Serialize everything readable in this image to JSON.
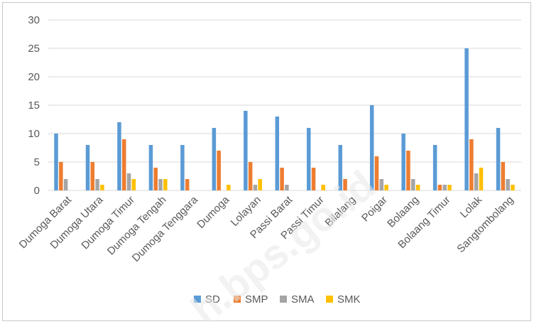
{
  "chart_data": {
    "type": "bar",
    "categories": [
      "Dumoga Barat",
      "Dumoga Utara",
      "Dumoga Timur",
      "Dumoga Tengah",
      "Dumoga Tenggara",
      "Dumoga",
      "Lolayan",
      "Passi Barat",
      "Passi Timur",
      "Bilalang",
      "Poigar",
      "Bolaang",
      "Bolaang Timur",
      "Lolak",
      "Sangtombolang"
    ],
    "series": [
      {
        "name": "SD",
        "color": "#5b9bd5",
        "values": [
          10,
          8,
          12,
          8,
          8,
          11,
          14,
          13,
          11,
          8,
          15,
          10,
          8,
          25,
          11
        ]
      },
      {
        "name": "SMP",
        "color": "#ed7d31",
        "values": [
          5,
          5,
          9,
          4,
          2,
          7,
          5,
          4,
          4,
          2,
          6,
          7,
          1,
          9,
          5
        ]
      },
      {
        "name": "SMA",
        "color": "#a5a5a5",
        "values": [
          2,
          2,
          3,
          2,
          0,
          0,
          1,
          1,
          0,
          0,
          2,
          2,
          1,
          3,
          2
        ]
      },
      {
        "name": "SMK",
        "color": "#ffc000",
        "values": [
          0,
          1,
          2,
          2,
          0,
          1,
          2,
          0,
          1,
          0,
          1,
          1,
          1,
          4,
          1
        ]
      }
    ],
    "ylim": [
      0,
      30
    ],
    "yticks": [
      0,
      5,
      10,
      15,
      20,
      25,
      30
    ],
    "grid": true,
    "legend": "bottom",
    "title": "",
    "xlabel": "",
    "ylabel": ""
  },
  "watermark": "h.bps.go.id"
}
